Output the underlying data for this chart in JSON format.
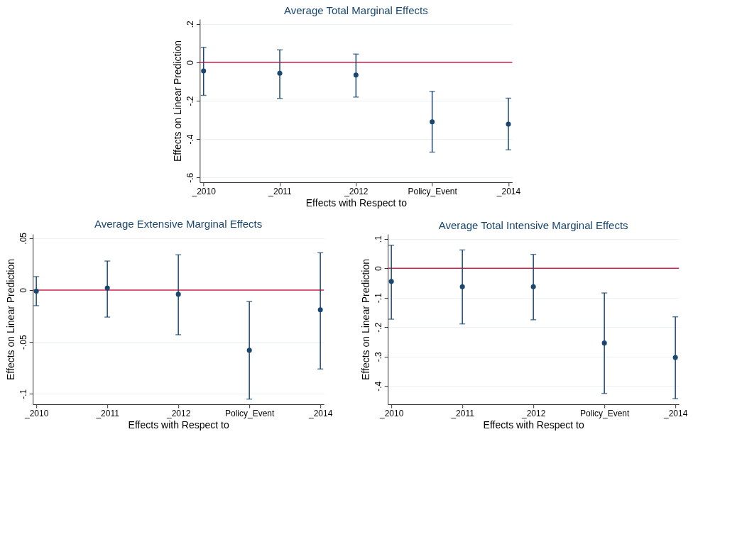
{
  "chart_data": [
    {
      "type": "scatter",
      "title": "Average Total Marginal Effects",
      "xlabel": "Effects with Respect to",
      "ylabel": "Effects on Linear Prediction",
      "categories": [
        "_2010",
        "_2011",
        "_2012",
        "Policy_Event",
        "_2014"
      ],
      "series": [
        {
          "color": "#1a476f",
          "values": [
            -0.045,
            -0.057,
            -0.066,
            -0.31,
            -0.322
          ],
          "errors": [
            [
              -0.172,
              0.078
            ],
            [
              -0.188,
              0.065
            ],
            [
              -0.181,
              0.043
            ],
            [
              -0.468,
              -0.151
            ],
            [
              -0.456,
              -0.187
            ]
          ]
        }
      ],
      "ylim": [
        -0.625,
        0.225
      ],
      "yticks": [
        {
          "value": 0.2,
          "label": ".2"
        },
        0,
        {
          "value": -0.2,
          "label": "-.2"
        },
        {
          "value": -0.4,
          "label": "-.4"
        },
        {
          "value": -0.6,
          "label": "-.6"
        }
      ],
      "ref_lines": [
        {
          "axis": "y",
          "value": 0,
          "color": "#d6204e"
        }
      ],
      "grid": "y",
      "marker": "circle"
    },
    {
      "type": "scatter",
      "title": "Average Extensive Marginal Effects",
      "xlabel": "Effects with Respect to",
      "ylabel": "Effects on Linear Prediction",
      "categories": [
        "_2010",
        "_2011",
        "_2012",
        "Policy_Event",
        "_2014"
      ],
      "series": [
        {
          "color": "#1a476f",
          "values": [
            -0.001,
            0.002,
            -0.004,
            -0.058,
            -0.019
          ],
          "errors": [
            [
              -0.015,
              0.013
            ],
            [
              -0.026,
              0.028
            ],
            [
              -0.043,
              0.034
            ],
            [
              -0.105,
              -0.011
            ],
            [
              -0.076,
              0.036
            ]
          ]
        }
      ],
      "ylim": [
        -0.11,
        0.054
      ],
      "yticks": [
        {
          "value": 0.05,
          "label": ".05"
        },
        0,
        {
          "value": -0.05,
          "label": "-.05"
        },
        {
          "value": -0.1,
          "label": "-.1"
        }
      ],
      "ref_lines": [
        {
          "axis": "y",
          "value": 0,
          "color": "#d6204e"
        }
      ],
      "grid": "y",
      "marker": "circle"
    },
    {
      "type": "scatter",
      "title": "Average Total Intensive Marginal Effects",
      "xlabel": "Effects with Respect to",
      "ylabel": "Effects on Linear Prediction",
      "categories": [
        "_2010",
        "_2011",
        "_2012",
        "Policy_Event",
        "_2014"
      ],
      "series": [
        {
          "color": "#1a476f",
          "values": [
            -0.045,
            -0.063,
            -0.063,
            -0.254,
            -0.303
          ],
          "errors": [
            [
              -0.173,
              0.078
            ],
            [
              -0.189,
              0.062
            ],
            [
              -0.175,
              0.047
            ],
            [
              -0.425,
              -0.084
            ],
            [
              -0.443,
              -0.165
            ]
          ]
        }
      ],
      "ylim": [
        -0.462,
        0.116
      ],
      "yticks": [
        {
          "value": 0.1,
          "label": ".1"
        },
        0,
        {
          "value": -0.1,
          "label": "-.1"
        },
        {
          "value": -0.2,
          "label": "-.2"
        },
        {
          "value": -0.3,
          "label": "-.3"
        },
        {
          "value": -0.4,
          "label": "-.4"
        }
      ],
      "ref_lines": [
        {
          "axis": "y",
          "value": 0,
          "color": "#d6204e"
        }
      ],
      "grid": "y",
      "marker": "circle"
    }
  ]
}
